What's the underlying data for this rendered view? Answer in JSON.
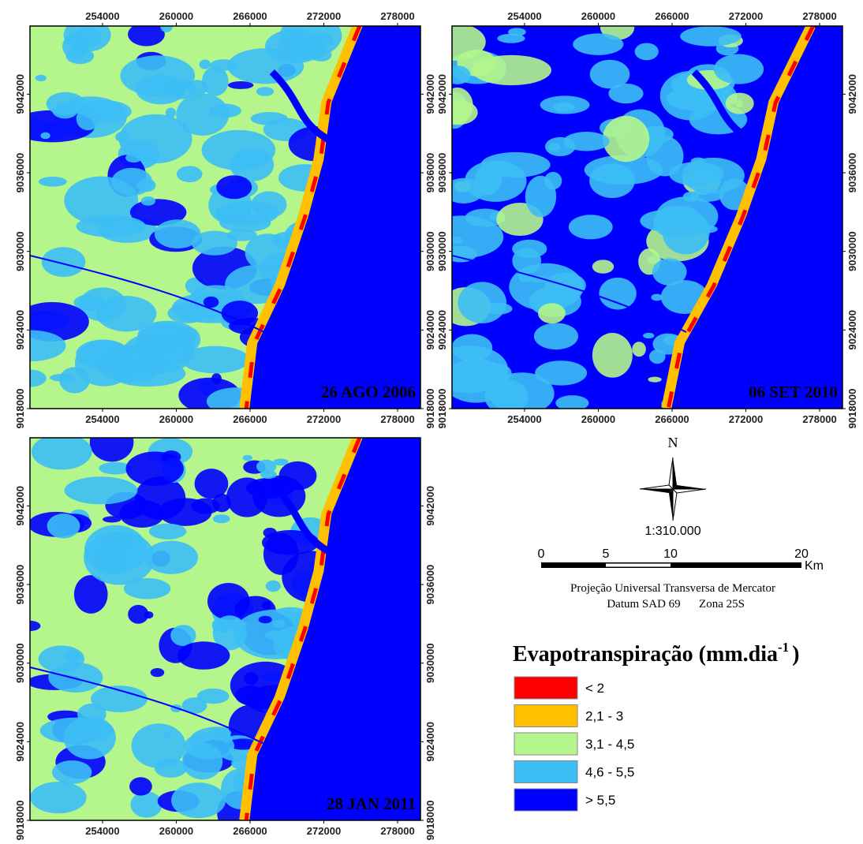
{
  "grid": {
    "xlim": [
      248100,
      279860
    ],
    "ylim": [
      9018000,
      9047200
    ],
    "xticks": [
      254000,
      260000,
      266000,
      272000,
      278000
    ],
    "yticks": [
      9018000,
      9024000,
      9030000,
      9036000,
      9042000
    ]
  },
  "maps": [
    {
      "date": "26 AGO 2006"
    },
    {
      "date": "06 SET 2010"
    },
    {
      "date": "28 JAN 2011"
    }
  ],
  "north": "N",
  "scale": "1:310.000",
  "scale_bar": {
    "ticks": [
      "0",
      "5",
      "10",
      "20"
    ],
    "unit": "Km"
  },
  "projection": {
    "line1": "Projeção Universal Transversa de Mercator",
    "datum": "Datum SAD 69",
    "zone": "Zona 25S"
  },
  "legend": {
    "title": "Evapotranspiração (mm.dia",
    "superscript": "-1",
    "close": ")",
    "items": [
      {
        "label": "< 2",
        "color": "#ff0000"
      },
      {
        "label": "2,1 - 3",
        "color": "#ffc000"
      },
      {
        "label": "3,1 - 4,5",
        "color": "#b4f58c"
      },
      {
        "label": "4,6 - 5,5",
        "color": "#3cbef5"
      },
      {
        "label": "> 5,5",
        "color": "#0000ff"
      }
    ]
  }
}
